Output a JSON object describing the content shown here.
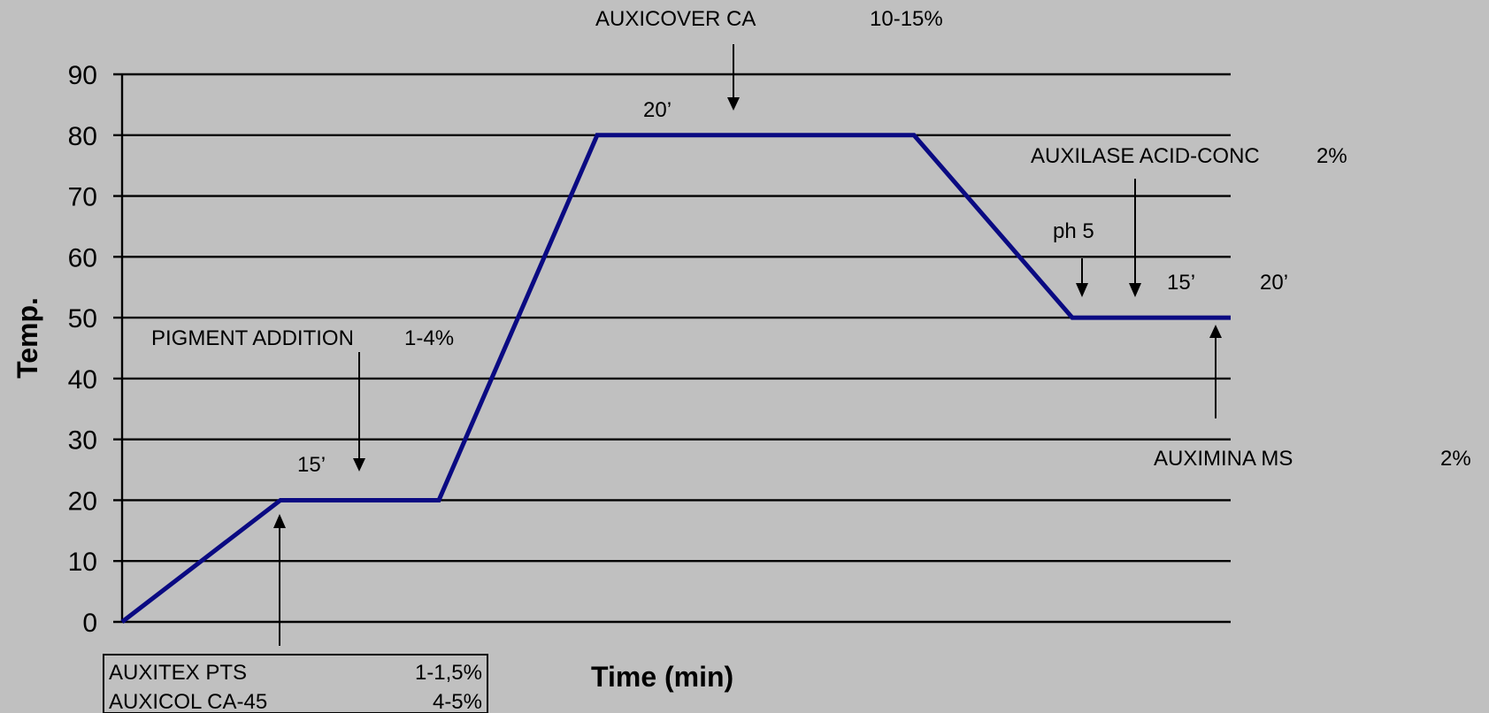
{
  "chart_data": {
    "type": "line",
    "xlabel": "Time (min)",
    "ylabel": "Temp.",
    "ylim": [
      0,
      90
    ],
    "yticks": [
      0,
      10,
      20,
      30,
      40,
      50,
      60,
      70,
      80,
      90
    ],
    "grid": true,
    "series": [
      {
        "color": "#0a0a82",
        "points": [
          {
            "x": 0,
            "y": 0
          },
          {
            "x": 35,
            "y": 20
          },
          {
            "x": 70,
            "y": 20
          },
          {
            "x": 105,
            "y": 80
          },
          {
            "x": 175,
            "y": 80
          },
          {
            "x": 210,
            "y": 50
          },
          {
            "x": 245,
            "y": 50
          }
        ]
      }
    ],
    "annotations": {
      "auxicover_name": "AUXICOVER CA",
      "auxicover_dose": "10-15%",
      "hold_80_time": "20’",
      "auxilase_name": "AUXILASE ACID-CONC",
      "auxilase_dose": "2%",
      "ph_label": "ph 5",
      "hold_50_time_a": "15’",
      "hold_50_time_b": "20’",
      "pigment_name": "PIGMENT ADDITION",
      "pigment_dose": "1-4%",
      "hold_20_time": "15’",
      "auximina_name": "AUXIMINA MS",
      "auximina_dose": "2%"
    },
    "table": [
      {
        "product": "AUXITEX PTS",
        "dose": "1-1,5%"
      },
      {
        "product": "AUXICOL CA-45",
        "dose": "4-5%"
      }
    ]
  }
}
